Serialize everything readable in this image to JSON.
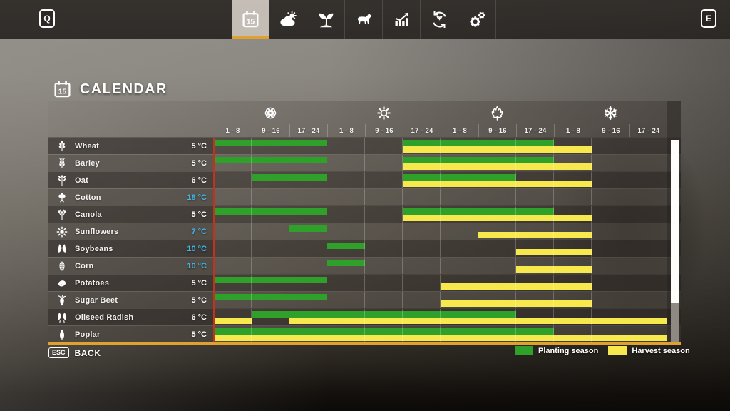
{
  "topbar": {
    "left_key_label": "Q",
    "right_key_label": "E",
    "tabs": [
      {
        "id": "calendar",
        "icon": "calendar-icon",
        "active": true
      },
      {
        "id": "weather",
        "icon": "weather-icon",
        "active": false
      },
      {
        "id": "crops",
        "icon": "seedling-icon",
        "active": false
      },
      {
        "id": "animals",
        "icon": "cow-icon",
        "active": false
      },
      {
        "id": "statistics",
        "icon": "stats-icon",
        "active": false
      },
      {
        "id": "economy",
        "icon": "rotation-icon",
        "active": false
      },
      {
        "id": "settings",
        "icon": "gears-icon",
        "active": false
      }
    ]
  },
  "header": {
    "title": "CALENDAR",
    "icon": "calendar-icon"
  },
  "footer": {
    "back_key": "ESC",
    "back_label": "BACK"
  },
  "legend": [
    {
      "id": "planting",
      "label": "Planting season",
      "color": "#2fa12b"
    },
    {
      "id": "harvest",
      "label": "Harvest season",
      "color": "#f7e94d"
    }
  ],
  "calendar_grid": {
    "seasons": [
      {
        "id": "spring",
        "icon": "spring-flower-icon"
      },
      {
        "id": "summer",
        "icon": "summer-sun-icon"
      },
      {
        "id": "autumn",
        "icon": "autumn-leaf-icon"
      },
      {
        "id": "winter",
        "icon": "winter-snowflake-icon"
      }
    ],
    "period_labels": [
      "1 - 8",
      "9 - 16",
      "17 - 24"
    ]
  },
  "colors": {
    "planting": "#2fa12b",
    "harvest": "#f7e94d",
    "accent_orange": "#dfa231",
    "temp_blue": "#41b6e8",
    "current_day_line": "#c2321d"
  },
  "chart_data": {
    "type": "table",
    "title": "Crop planting and harvest calendar",
    "columns": [
      "Spring 1-8",
      "Spring 9-16",
      "Spring 17-24",
      "Summer 1-8",
      "Summer 9-16",
      "Summer 17-24",
      "Autumn 1-8",
      "Autumn 9-16",
      "Autumn 17-24",
      "Winter 1-8",
      "Winter 9-16",
      "Winter 17-24"
    ],
    "unit": "segments are [start,end] in column units 0-12 across the year",
    "legend": [
      "Planting season (green)",
      "Harvest season (yellow)"
    ],
    "rows": [
      {
        "crop": "Wheat",
        "icon": "wheat-icon",
        "min_temp": "5 °C",
        "temp_highlighted": false,
        "planting": [
          [
            0,
            3
          ],
          [
            5,
            9
          ]
        ],
        "harvest": [
          [
            5,
            10
          ]
        ]
      },
      {
        "crop": "Barley",
        "icon": "barley-icon",
        "min_temp": "5 °C",
        "temp_highlighted": false,
        "planting": [
          [
            0,
            3
          ],
          [
            5,
            9
          ]
        ],
        "harvest": [
          [
            5,
            10
          ]
        ]
      },
      {
        "crop": "Oat",
        "icon": "oat-icon",
        "min_temp": "6 °C",
        "temp_highlighted": false,
        "planting": [
          [
            1,
            3
          ],
          [
            5,
            8
          ]
        ],
        "harvest": [
          [
            5,
            10
          ]
        ]
      },
      {
        "crop": "Cotton",
        "icon": "cotton-icon",
        "min_temp": "18 °C",
        "temp_highlighted": true,
        "planting": [],
        "harvest": []
      },
      {
        "crop": "Canola",
        "icon": "canola-icon",
        "min_temp": "5 °C",
        "temp_highlighted": false,
        "planting": [
          [
            0,
            3
          ],
          [
            5,
            9
          ]
        ],
        "harvest": [
          [
            5,
            10
          ]
        ]
      },
      {
        "crop": "Sunflowers",
        "icon": "sunflower-icon",
        "min_temp": "7 °C",
        "temp_highlighted": true,
        "planting": [
          [
            2,
            3
          ]
        ],
        "harvest": [
          [
            7,
            10
          ]
        ]
      },
      {
        "crop": "Soybeans",
        "icon": "soybean-icon",
        "min_temp": "10 °C",
        "temp_highlighted": true,
        "planting": [
          [
            3,
            4
          ]
        ],
        "harvest": [
          [
            8,
            10
          ]
        ]
      },
      {
        "crop": "Corn",
        "icon": "corn-icon",
        "min_temp": "10 °C",
        "temp_highlighted": true,
        "planting": [
          [
            3,
            4
          ]
        ],
        "harvest": [
          [
            8,
            10
          ]
        ]
      },
      {
        "crop": "Potatoes",
        "icon": "potato-icon",
        "min_temp": "5 °C",
        "temp_highlighted": false,
        "planting": [
          [
            0,
            3
          ]
        ],
        "harvest": [
          [
            6,
            10
          ]
        ]
      },
      {
        "crop": "Sugar Beet",
        "icon": "sugar-beet-icon",
        "min_temp": "5 °C",
        "temp_highlighted": false,
        "planting": [
          [
            0,
            3
          ]
        ],
        "harvest": [
          [
            6,
            10
          ]
        ]
      },
      {
        "crop": "Oilseed Radish",
        "icon": "oilseed-radish-icon",
        "min_temp": "6 °C",
        "temp_highlighted": false,
        "planting": [
          [
            1,
            8
          ]
        ],
        "harvest": [
          [
            0,
            1
          ],
          [
            2,
            12
          ]
        ]
      },
      {
        "crop": "Poplar",
        "icon": "poplar-icon",
        "min_temp": "5 °C",
        "temp_highlighted": false,
        "planting": [
          [
            0,
            9
          ]
        ],
        "harvest": [
          [
            0,
            12
          ]
        ]
      }
    ]
  }
}
